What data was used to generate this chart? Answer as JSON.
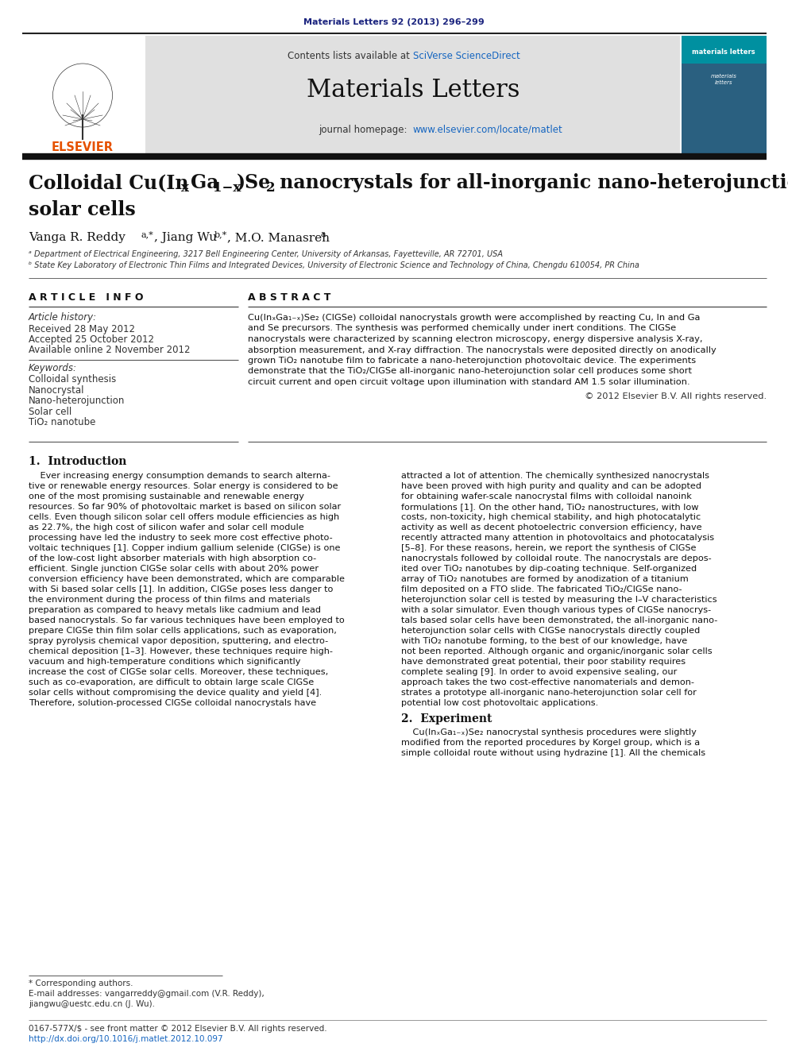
{
  "page_bg": "#ffffff",
  "top_citation": "Materials Letters 92 (2013) 296–299",
  "top_citation_color": "#1a237e",
  "header_bg": "#e0e0e0",
  "header_url": "www.elsevier.com/locate/matlet",
  "header_url_color": "#1565c0",
  "sciverse_color": "#1565c0",
  "elsevier_color": "#e65100",
  "affil_a": "ᵃ Department of Electrical Engineering, 3217 Bell Engineering Center, University of Arkansas, Fayetteville, AR 72701, USA",
  "affil_b": "ᵇ State Key Laboratory of Electronic Thin Films and Integrated Devices, University of Electronic Science and Technology of China, Chengdu 610054, PR China",
  "received": "Received 28 May 2012",
  "accepted": "Accepted 25 October 2012",
  "available": "Available online 2 November 2012",
  "kw1": "Colloidal synthesis",
  "kw2": "Nanocrystal",
  "kw3": "Nano-heterojunction",
  "kw4": "Solar cell",
  "kw5": "TiO₂ nanotube",
  "copyright": "© 2012 Elsevier B.V. All rights reserved.",
  "footnote1": "* Corresponding authors.",
  "footnote2": "E-mail addresses: vangarreddy@gmail.com (V.R. Reddy),",
  "footnote3": "jiangwu@uestc.edu.cn (J. Wu).",
  "footer1": "0167-577X/$ - see front matter © 2012 Elsevier B.V. All rights reserved.",
  "footer2": "http://dx.doi.org/10.1016/j.matlet.2012.10.097",
  "intro_col1_lines": [
    "    Ever increasing energy consumption demands to search alterna-",
    "tive or renewable energy resources. Solar energy is considered to be",
    "one of the most promising sustainable and renewable energy",
    "resources. So far 90% of photovoltaic market is based on silicon solar",
    "cells. Even though silicon solar cell offers module efficiencies as high",
    "as 22.7%, the high cost of silicon wafer and solar cell module",
    "processing have led the industry to seek more cost effective photo-",
    "voltaic techniques [1]. Copper indium gallium selenide (CIGSe) is one",
    "of the low-cost light absorber materials with high absorption co-",
    "efficient. Single junction CIGSe solar cells with about 20% power",
    "conversion efficiency have been demonstrated, which are comparable",
    "with Si based solar cells [1]. In addition, CIGSe poses less danger to",
    "the environment during the process of thin films and materials",
    "preparation as compared to heavy metals like cadmium and lead",
    "based nanocrystals. So far various techniques have been employed to",
    "prepare CIGSe thin film solar cells applications, such as evaporation,",
    "spray pyrolysis chemical vapor deposition, sputtering, and electro-",
    "chemical deposition [1–3]. However, these techniques require high-",
    "vacuum and high-temperature conditions which significantly",
    "increase the cost of CIGSe solar cells. Moreover, these techniques,",
    "such as co-evaporation, are difficult to obtain large scale CIGSe",
    "solar cells without compromising the device quality and yield [4].",
    "Therefore, solution-processed CIGSe colloidal nanocrystals have"
  ],
  "intro_col2_lines": [
    "attracted a lot of attention. The chemically synthesized nanocrystals",
    "have been proved with high purity and quality and can be adopted",
    "for obtaining wafer-scale nanocrystal films with colloidal nanoink",
    "formulations [1]. On the other hand, TiO₂ nanostructures, with low",
    "costs, non-toxicity, high chemical stability, and high photocatalytic",
    "activity as well as decent photoelectric conversion efficiency, have",
    "recently attracted many attention in photovoltaics and photocatalysis",
    "[5–8]. For these reasons, herein, we report the synthesis of CIGSe",
    "nanocrystals followed by colloidal route. The nanocrystals are depos-",
    "ited over TiO₂ nanotubes by dip-coating technique. Self-organized",
    "array of TiO₂ nanotubes are formed by anodization of a titanium",
    "film deposited on a FTO slide. The fabricated TiO₂/CIGSe nano-",
    "heterojunction solar cell is tested by measuring the I–V characteristics",
    "with a solar simulator. Even though various types of CIGSe nanocrys-",
    "tals based solar cells have been demonstrated, the all-inorganic nano-",
    "heterojunction solar cells with CIGSe nanocrystals directly coupled",
    "with TiO₂ nanotube forming, to the best of our knowledge, have",
    "not been reported. Although organic and organic/inorganic solar cells",
    "have demonstrated great potential, their poor stability requires",
    "complete sealing [9]. In order to avoid expensive sealing, our",
    "approach takes the two cost-effective nanomaterials and demon-",
    "strates a prototype all-inorganic nano-heterojunction solar cell for",
    "potential low cost photovoltaic applications."
  ],
  "abstract_lines": [
    "Cu(InₓGa₁₋ₓ)Se₂ (CIGSe) colloidal nanocrystals growth were accomplished by reacting Cu, In and Ga",
    "and Se precursors. The synthesis was performed chemically under inert conditions. The CIGSe",
    "nanocrystals were characterized by scanning electron microscopy, energy dispersive analysis X-ray,",
    "absorption measurement, and X-ray diffraction. The nanocrystals were deposited directly on anodically",
    "grown TiO₂ nanotube film to fabricate a nano-heterojunction photovoltaic device. The experiments",
    "demonstrate that the TiO₂/CIGSe all-inorganic nano-heterojunction solar cell produces some short",
    "circuit current and open circuit voltage upon illumination with standard AM 1.5 solar illumination."
  ],
  "sec2_lines": [
    "    Cu(InₓGa₁₋ₓ)Se₂ nanocrystal synthesis procedures were slightly",
    "modified from the reported procedures by Korgel group, which is a",
    "simple colloidal route without using hydrazine [1]. All the chemicals"
  ]
}
